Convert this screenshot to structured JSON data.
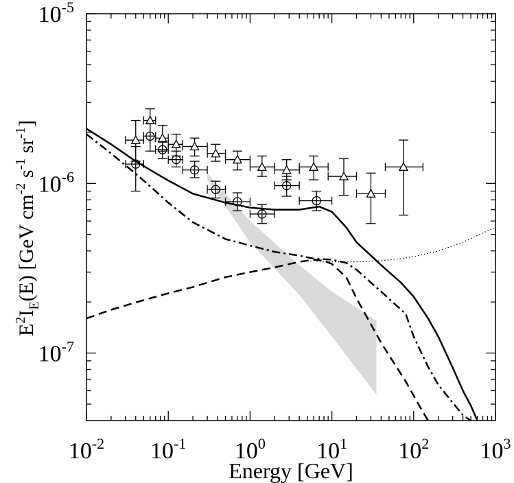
{
  "chart_data": {
    "type": "line",
    "title": "",
    "xlabel": "Energy [GeV]",
    "ylabel": "E2IE(E) [GeV cm-2 s-1 sr-1]",
    "xscale": "log",
    "yscale": "log",
    "xlim": [
      0.01,
      1000
    ],
    "ylim": [
      4e-08,
      1e-05
    ],
    "legend": "none",
    "grid": false,
    "x_ticks": [
      {
        "base": "10",
        "exp": "-2",
        "value": 0.01
      },
      {
        "base": "10",
        "exp": "-1",
        "value": 0.1
      },
      {
        "base": "10",
        "exp": "0",
        "value": 1
      },
      {
        "base": "10",
        "exp": "1",
        "value": 10
      },
      {
        "base": "10",
        "exp": "2",
        "value": 100
      },
      {
        "base": "10",
        "exp": "3",
        "value": 1000
      }
    ],
    "y_ticks": [
      {
        "base": "10",
        "exp": "-7",
        "value": 1e-07
      },
      {
        "base": "10",
        "exp": "-6",
        "value": 1e-06
      },
      {
        "base": "10",
        "exp": "-5",
        "value": 1e-05
      }
    ],
    "y_label_parts": {
      "p1": "E",
      "sup2": "2",
      "p2": "I",
      "subE": "E",
      "p3": "(E) [GeV cm",
      "supm2": "-2",
      "p4": " s",
      "supm1a": "-1",
      "p5": " sr",
      "supm1b": "-1",
      "p6": "]"
    },
    "series": [
      {
        "name": "solid",
        "style": "solid",
        "width": 2.5,
        "x": [
          0.01,
          0.02,
          0.04,
          0.07,
          0.1,
          0.2,
          0.5,
          1,
          2,
          4,
          7,
          10,
          15,
          20,
          40,
          70,
          100,
          150,
          200,
          300,
          400,
          500,
          600
        ],
        "y": [
          2.1e-06,
          1.7e-06,
          1.35e-06,
          1.15e-06,
          1.04e-06,
          8.7e-07,
          7.7e-07,
          7.2e-07,
          7e-07,
          7e-07,
          7.3e-07,
          6.8e-07,
          5.5e-07,
          4.5e-07,
          3.3e-07,
          2.6e-07,
          2.15e-07,
          1.6e-07,
          1.25e-07,
          8.2e-08,
          6e-08,
          4.9e-08,
          4e-08
        ]
      },
      {
        "name": "dash-dot",
        "style": "dashdot",
        "width": 2.5,
        "x": [
          0.01,
          0.02,
          0.04,
          0.07,
          0.1,
          0.2,
          0.5,
          1,
          2,
          4,
          6,
          10,
          15,
          20,
          40,
          80,
          100,
          150,
          200,
          300,
          400,
          500
        ],
        "y": [
          1.95e-06,
          1.5e-06,
          1.14e-06,
          9e-07,
          7.7e-07,
          5.9e-07,
          4.7e-07,
          4.3e-07,
          3.95e-07,
          3.75e-07,
          3.6e-07,
          3.55e-07,
          3.4e-07,
          3.1e-07,
          2.3e-07,
          1.7e-07,
          1.25e-07,
          8.3e-08,
          6.5e-08,
          5.1e-08,
          4.3e-08,
          4e-08
        ]
      },
      {
        "name": "dashed",
        "style": "dashed",
        "width": 2.5,
        "x": [
          0.01,
          0.02,
          0.05,
          0.1,
          0.2,
          0.5,
          1,
          2,
          4,
          6,
          8,
          10,
          15,
          20,
          40,
          80,
          120,
          150
        ],
        "y": [
          1.6e-07,
          1.8e-07,
          2.05e-07,
          2.25e-07,
          2.45e-07,
          2.8e-07,
          3e-07,
          3.2e-07,
          3.45e-07,
          3.55e-07,
          3.5e-07,
          3.35e-07,
          2.8e-07,
          2.1e-07,
          1.15e-07,
          6.8e-08,
          4.8e-08,
          4e-08
        ]
      },
      {
        "name": "dotted",
        "style": "dotted",
        "width": 1.2,
        "x": [
          5,
          10,
          20,
          40,
          70,
          100,
          200,
          400,
          700,
          1000
        ],
        "y": [
          3.5e-07,
          3.45e-07,
          3.45e-07,
          3.5e-07,
          3.6e-07,
          3.7e-07,
          4e-07,
          4.5e-07,
          5.1e-07,
          5.5e-07
        ]
      }
    ],
    "band": {
      "name": "gray band",
      "color": "#d9d9d9",
      "upper": [
        [
          0.3,
          1.15e-06
        ],
        [
          1.0,
          6e-07
        ],
        [
          4.0,
          3.3e-07
        ],
        [
          10.0,
          2.3e-07
        ],
        [
          35.0,
          1.55e-07
        ]
      ],
      "lower": [
        [
          0.3,
          1.05e-06
        ],
        [
          1.0,
          4.5e-07
        ],
        [
          4.0,
          2.2e-07
        ],
        [
          10.0,
          1.25e-07
        ],
        [
          35.0,
          5.7e-08
        ]
      ]
    },
    "data_triangles": [
      {
        "x": 0.04,
        "xlo": 0.03,
        "xhi": 0.05,
        "y": 1.8e-06,
        "ylo": 1.35e-06,
        "yhi": 2.35e-06
      },
      {
        "x": 0.06,
        "xlo": 0.05,
        "xhi": 0.07,
        "y": 2.35e-06,
        "ylo": 1.9e-06,
        "yhi": 2.75e-06
      },
      {
        "x": 0.085,
        "xlo": 0.07,
        "xhi": 0.1,
        "y": 1.85e-06,
        "ylo": 1.55e-06,
        "yhi": 2.2e-06
      },
      {
        "x": 0.125,
        "xlo": 0.1,
        "xhi": 0.15,
        "y": 1.7e-06,
        "ylo": 1.45e-06,
        "yhi": 1.95e-06
      },
      {
        "x": 0.21,
        "xlo": 0.15,
        "xhi": 0.3,
        "y": 1.65e-06,
        "ylo": 1.45e-06,
        "yhi": 1.85e-06
      },
      {
        "x": 0.38,
        "xlo": 0.3,
        "xhi": 0.5,
        "y": 1.5e-06,
        "ylo": 1.35e-06,
        "yhi": 1.7e-06
      },
      {
        "x": 0.7,
        "xlo": 0.5,
        "xhi": 1.0,
        "y": 1.38e-06,
        "ylo": 1.2e-06,
        "yhi": 1.55e-06
      },
      {
        "x": 1.4,
        "xlo": 1.0,
        "xhi": 2.0,
        "y": 1.25e-06,
        "ylo": 1.1e-06,
        "yhi": 1.45e-06
      },
      {
        "x": 2.8,
        "xlo": 2.0,
        "xhi": 4.0,
        "y": 1.2e-06,
        "ylo": 1.05e-06,
        "yhi": 1.38e-06
      },
      {
        "x": 6.0,
        "xlo": 4.0,
        "xhi": 9.0,
        "y": 1.25e-06,
        "ylo": 1.05e-06,
        "yhi": 1.45e-06
      },
      {
        "x": 14.0,
        "xlo": 9.0,
        "xhi": 20.0,
        "y": 1.1e-06,
        "ylo": 8.5e-07,
        "yhi": 1.4e-06
      },
      {
        "x": 30.0,
        "xlo": 20.0,
        "xhi": 45.0,
        "y": 8.7e-07,
        "ylo": 5.8e-07,
        "yhi": 1.15e-06
      },
      {
        "x": 75.0,
        "xlo": 45.0,
        "xhi": 130.0,
        "y": 1.25e-06,
        "ylo": 6.5e-07,
        "yhi": 1.8e-06
      }
    ],
    "data_circles": [
      {
        "x": 0.04,
        "xlo": 0.03,
        "xhi": 0.05,
        "y": 1.3e-06,
        "ylo": 9e-07,
        "yhi": 1.65e-06
      },
      {
        "x": 0.06,
        "xlo": 0.05,
        "xhi": 0.07,
        "y": 1.9e-06,
        "ylo": 1.55e-06,
        "yhi": 2.25e-06
      },
      {
        "x": 0.085,
        "xlo": 0.07,
        "xhi": 0.1,
        "y": 1.58e-06,
        "ylo": 1.4e-06,
        "yhi": 1.75e-06
      },
      {
        "x": 0.125,
        "xlo": 0.1,
        "xhi": 0.15,
        "y": 1.38e-06,
        "ylo": 1.25e-06,
        "yhi": 1.55e-06
      },
      {
        "x": 0.21,
        "xlo": 0.15,
        "xhi": 0.3,
        "y": 1.2e-06,
        "ylo": 1.08e-06,
        "yhi": 1.35e-06
      },
      {
        "x": 0.38,
        "xlo": 0.3,
        "xhi": 0.5,
        "y": 9.2e-07,
        "ylo": 8.2e-07,
        "yhi": 1.03e-06
      },
      {
        "x": 0.7,
        "xlo": 0.5,
        "xhi": 1.0,
        "y": 7.8e-07,
        "ylo": 6.9e-07,
        "yhi": 8.8e-07
      },
      {
        "x": 1.4,
        "xlo": 1.0,
        "xhi": 2.0,
        "y": 6.6e-07,
        "ylo": 5.8e-07,
        "yhi": 7.5e-07
      },
      {
        "x": 2.8,
        "xlo": 2.0,
        "xhi": 4.0,
        "y": 9.7e-07,
        "ylo": 8.4e-07,
        "yhi": 1.1e-06
      },
      {
        "x": 6.5,
        "xlo": 4.0,
        "xhi": 10.0,
        "y": 7.9e-07,
        "ylo": 6.9e-07,
        "yhi": 9e-07
      }
    ]
  }
}
